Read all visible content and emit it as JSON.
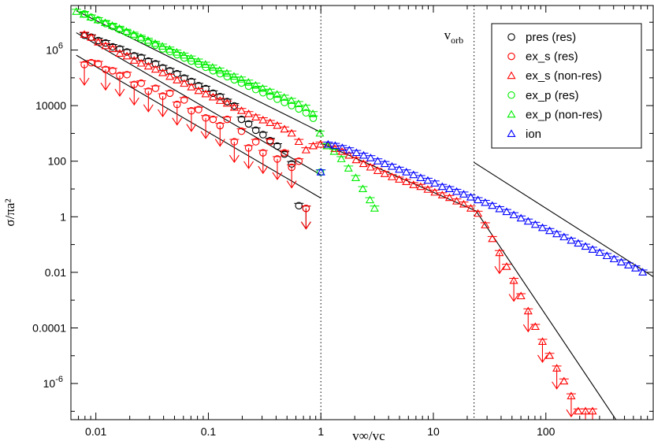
{
  "chart_data": {
    "type": "scatter",
    "title": "",
    "xlabel": "v∞/vc",
    "ylabel": "σ/πa²",
    "x_scale": "log",
    "y_scale": "log",
    "xlim": [
      0.006,
      900
    ],
    "ylim": [
      5e-08,
      40000000.0
    ],
    "grid": false,
    "legend_position": "top-right",
    "x_ticks": [
      {
        "value": 0.01,
        "label": "0.01"
      },
      {
        "value": 0.1,
        "label": "0.1"
      },
      {
        "value": 1,
        "label": "1"
      },
      {
        "value": 10,
        "label": "10"
      },
      {
        "value": 100,
        "label": "100"
      }
    ],
    "y_ticks": [
      {
        "value": 1e-06,
        "base": "10",
        "exp": "-6"
      },
      {
        "value": 0.0001,
        "label": "0.0001"
      },
      {
        "value": 0.01,
        "label": "0.01"
      },
      {
        "value": 1,
        "label": "1"
      },
      {
        "value": 100,
        "label": "100"
      },
      {
        "value": 10000,
        "label": "10000"
      },
      {
        "value": 1000000.0,
        "base": "10",
        "exp": "6"
      }
    ],
    "vlines": [
      {
        "x": 1,
        "style": "dotted"
      },
      {
        "x": 23,
        "style": "dotted",
        "annotation": {
          "base": "v",
          "sub": "orb"
        }
      }
    ],
    "fit_lines": [
      {
        "points": [
          [
            0.0067,
            26000000.0
          ],
          [
            1,
            1100.0
          ]
        ]
      },
      {
        "points": [
          [
            0.0067,
            4200000.0
          ],
          [
            1,
            32.0
          ]
        ]
      },
      {
        "points": [
          [
            0.0067,
            650000.0
          ],
          [
            1,
            4.7
          ]
        ]
      },
      {
        "points": [
          [
            1.0,
            450.0
          ],
          [
            25,
            1.5
          ]
        ]
      },
      {
        "points": [
          [
            23,
            90.0
          ],
          [
            900,
            0.007
          ]
        ]
      },
      {
        "points": [
          [
            24,
            1.6
          ],
          [
            420,
            5e-08
          ]
        ]
      }
    ],
    "series": [
      {
        "name": "pres (res)",
        "marker": "circle",
        "color": "#000000",
        "x": [
          0.0079,
          0.0091,
          0.0105,
          0.0122,
          0.0141,
          0.0163,
          0.0189,
          0.0219,
          0.0253,
          0.0293,
          0.0339,
          0.0393,
          0.0455,
          0.0527,
          0.061,
          0.0706,
          0.0818,
          0.0947,
          0.11,
          0.127,
          0.147,
          0.17,
          0.197,
          0.228,
          0.264,
          0.306,
          0.354,
          0.41,
          0.475,
          0.55,
          0.637,
          0.738
        ],
        "y": [
          3400000.0,
          2900000.0,
          2200000.0,
          1800000.0,
          1300000.0,
          1100000.0,
          850000.0,
          620000.0,
          540000.0,
          400000.0,
          320000.0,
          230000.0,
          180000.0,
          140000.0,
          98000.0,
          74000.0,
          52000.0,
          41000.0,
          28000.0,
          21000.0,
          14000.0,
          9800.0,
          3200.0,
          2200.0,
          1300.0,
          900.0,
          550.0,
          350.0,
          180.0,
          80.0,
          2.5,
          2.0
        ],
        "upper_limits": [
          0.738
        ]
      },
      {
        "name": "ex_s (res)",
        "marker": "circle",
        "color": "#ff0000",
        "x": [
          0.0079,
          0.0091,
          0.0105,
          0.0122,
          0.0141,
          0.0163,
          0.0189,
          0.0219,
          0.0253,
          0.0293,
          0.0339,
          0.0393,
          0.0455,
          0.0527,
          0.061,
          0.0706,
          0.0818,
          0.0947,
          0.11,
          0.127,
          0.147,
          0.17,
          0.197,
          0.228,
          0.264,
          0.306,
          0.354,
          0.41,
          0.475,
          0.55,
          0.637,
          0.738
        ],
        "y": [
          300000.0,
          350000.0,
          320000.0,
          200000.0,
          180000.0,
          120000.0,
          130000.0,
          58000.0,
          64000.0,
          33000.0,
          42000.0,
          22000.0,
          28000.0,
          11000.0,
          16000.0,
          6500.0,
          7200.0,
          3600.0,
          3200.0,
          1900.0,
          3200.0,
          500.0,
          1200.0,
          300.0,
          500.0,
          200.0,
          500.0,
          120.0,
          200.0,
          60.0,
          100.0,
          2.0
        ],
        "upper_limits": [
          0.0079,
          0.0122,
          0.0163,
          0.0219,
          0.0293,
          0.0393,
          0.0527,
          0.0706,
          0.0947,
          0.127,
          0.17,
          0.228,
          0.306,
          0.41,
          0.55,
          0.738
        ]
      },
      {
        "name": "ex_s (non-res)",
        "marker": "triangle",
        "color": "#ff0000",
        "x": [
          0.0079,
          0.0091,
          0.0105,
          0.0122,
          0.0141,
          0.0163,
          0.0189,
          0.0219,
          0.0253,
          0.0293,
          0.0339,
          0.0393,
          0.0455,
          0.0527,
          0.061,
          0.0706,
          0.0818,
          0.0947,
          0.11,
          0.127,
          0.147,
          0.17,
          0.197,
          0.228,
          0.264,
          0.306,
          0.354,
          0.41,
          0.475,
          0.55,
          0.637,
          0.738,
          0.855,
          0.99,
          1.15,
          1.33,
          1.54,
          1.78,
          2.06,
          2.39,
          2.76,
          3.2,
          3.7,
          4.29,
          4.97,
          5.75,
          6.66,
          7.71,
          8.93,
          10.3,
          12.0,
          13.9,
          16.1,
          18.6,
          21.5,
          24.9,
          28.9,
          33.4,
          38.7,
          44.8,
          51.9,
          60.1,
          69.6,
          80.6,
          93.3,
          108,
          125,
          145,
          168,
          194,
          225,
          260
        ],
        "y": [
          3600000.0,
          2800000.0,
          1900000.0,
          1400000.0,
          1100000.0,
          750000.0,
          600000.0,
          420000.0,
          330000.0,
          260000.0,
          200000.0,
          150000.0,
          110000.0,
          82000.0,
          62000.0,
          46000.0,
          34000.0,
          26000.0,
          20000.0,
          15000.0,
          12000.0,
          8500.0,
          6500.0,
          5000.0,
          3800.0,
          3000.0,
          2400.0,
          1900.0,
          1400.0,
          1000.0,
          500.0,
          250.0,
          350.0,
          400.0,
          350.0,
          280.0,
          220.0,
          160.0,
          110.0,
          80.0,
          60.0,
          45.0,
          35.0,
          27.0,
          22.0,
          18.0,
          14.0,
          12.0,
          9.5,
          7.5,
          6.0,
          4.8,
          3.6,
          2.8,
          2.0,
          1.3,
          0.5,
          0.16,
          0.05,
          0.016,
          0.005,
          0.0014,
          0.0004,
          0.00011,
          3.2e-05,
          1e-05,
          3.5e-06,
          1.2e-06,
          3.5e-07,
          1e-07,
          1e-07,
          1e-07
        ],
        "upper_limits": [
          38.7,
          51.9,
          69.6,
          93.3,
          125,
          168,
          225,
          260
        ]
      },
      {
        "name": "ex_p (res)",
        "marker": "circle",
        "color": "#00ee00",
        "x": [
          0.0079,
          0.0091,
          0.0105,
          0.0122,
          0.0141,
          0.0163,
          0.0189,
          0.0219,
          0.0253,
          0.0293,
          0.0339,
          0.0393,
          0.0455,
          0.0527,
          0.061,
          0.0706,
          0.0818,
          0.0947,
          0.11,
          0.127,
          0.147,
          0.17,
          0.197,
          0.228,
          0.264,
          0.306,
          0.354,
          0.41,
          0.475,
          0.55,
          0.637,
          0.738,
          0.855,
          0.99
        ],
        "y": [
          20000000.0,
          15000000.0,
          12000000.0,
          9000000.0,
          7000000.0,
          5400000.0,
          4200000.0,
          3200000.0,
          2500000.0,
          1900000.0,
          1500000.0,
          1100000.0,
          880000.0,
          680000.0,
          520000.0,
          400000.0,
          310000.0,
          240000.0,
          180000.0,
          140000.0,
          110000.0,
          85000.0,
          65000.0,
          50000.0,
          38000.0,
          29000.0,
          22000.0,
          17000.0,
          13000.0,
          10000.0,
          7600.0,
          5500.0,
          3500.0,
          40.0
        ],
        "upper_limits": []
      },
      {
        "name": "ex_p (non-res)",
        "marker": "triangle",
        "color": "#00ee00",
        "x": [
          0.0067,
          0.0078,
          0.009,
          0.0104,
          0.0121,
          0.014,
          0.0162,
          0.0187,
          0.0217,
          0.0251,
          0.0291,
          0.0337,
          0.039,
          0.0452,
          0.0523,
          0.0606,
          0.0702,
          0.0813,
          0.0942,
          0.109,
          0.126,
          0.146,
          0.169,
          0.196,
          0.227,
          0.263,
          0.304,
          0.352,
          0.408,
          0.472,
          0.547,
          0.633,
          0.733,
          0.849,
          0.98,
          1.13,
          1.31,
          1.52,
          1.76,
          2.04,
          2.36,
          2.73,
          3.0
        ],
        "y": [
          24000000.0,
          19000000.0,
          15000000.0,
          12000000.0,
          9500000.0,
          7500000.0,
          5900000.0,
          4600000.0,
          3600000.0,
          2800000.0,
          2200000.0,
          1700000.0,
          1350000.0,
          1050000.0,
          820000.0,
          640000.0,
          500000.0,
          390000.0,
          300000.0,
          235000.0,
          185000.0,
          145000.0,
          112000.0,
          88000.0,
          68000.0,
          53000.0,
          41000.0,
          32000.0,
          25000.0,
          19500.0,
          15000.0,
          11500.0,
          8500.0,
          5000.0,
          1000.0,
          350.0,
          220.0,
          120.0,
          55.0,
          25.0,
          10.0,
          4.0,
          2.0
        ],
        "upper_limits": []
      },
      {
        "name": "ion",
        "marker": "triangle",
        "color": "#0000ff",
        "x": [
          1.0,
          1.16,
          1.34,
          1.55,
          1.79,
          2.07,
          2.4,
          2.77,
          3.2,
          3.7,
          4.29,
          4.97,
          5.75,
          6.66,
          7.71,
          8.93,
          10.3,
          12.0,
          13.9,
          16.1,
          18.6,
          21.5,
          24.9,
          28.9,
          33.4,
          38.7,
          44.8,
          51.9,
          60.1,
          69.6,
          80.6,
          93.3,
          108,
          125,
          145,
          168,
          194,
          225,
          260,
          301,
          349,
          404,
          468,
          542,
          627,
          726
        ],
        "y": [
          40.0,
          400.0,
          360.0,
          300.0,
          250.0,
          200.0,
          160.0,
          130.0,
          100.0,
          80.0,
          64.0,
          50.0,
          40.0,
          32.0,
          25.0,
          20.0,
          16.0,
          12.0,
          10.0,
          8.0,
          6.4,
          5.0,
          4.0,
          3.2,
          2.5,
          1.9,
          1.5,
          1.15,
          0.88,
          0.68,
          0.52,
          0.4,
          0.31,
          0.24,
          0.185,
          0.14,
          0.11,
          0.085,
          0.066,
          0.051,
          0.039,
          0.03,
          0.023,
          0.018,
          0.014,
          0.01
        ],
        "upper_limits": []
      }
    ]
  }
}
